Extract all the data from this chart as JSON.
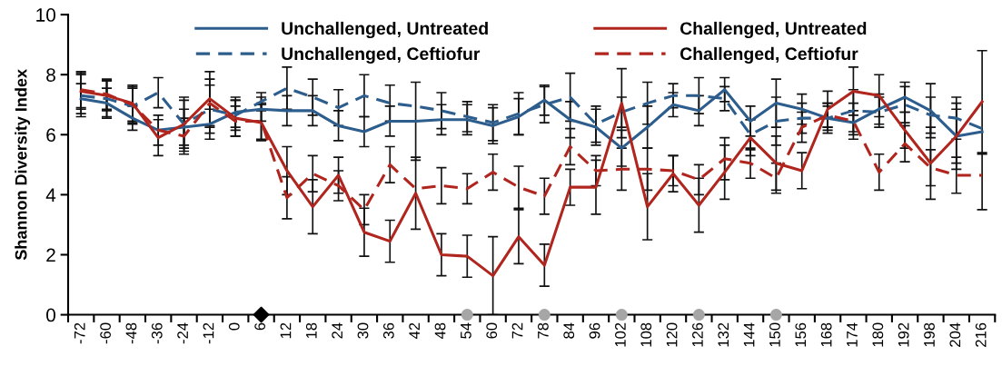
{
  "chart_data": {
    "type": "line",
    "ylabel": "Shannon Diversity Index",
    "categories": [
      "-72",
      "-60",
      "-48",
      "-36",
      "-24",
      "-12",
      "0",
      "6",
      "12",
      "18",
      "24",
      "30",
      "36",
      "42",
      "48",
      "54",
      "60",
      "72",
      "78",
      "84",
      "96",
      "102",
      "108",
      "120",
      "126",
      "132",
      "144",
      "150",
      "156",
      "168",
      "174",
      "180",
      "192",
      "198",
      "204",
      "216"
    ],
    "ylim": [
      0,
      10
    ],
    "yticks": [
      0,
      2,
      4,
      6,
      8,
      10
    ],
    "grid": false,
    "legend": "top",
    "marker": "none",
    "series": [
      {
        "name": "Unchallenged, Untreated",
        "color": "#2c5d8c",
        "line_style": "solid",
        "values": [
          7.2,
          7.05,
          6.55,
          6.15,
          6.25,
          6.35,
          6.75,
          6.85,
          6.8,
          6.8,
          6.3,
          6.1,
          6.45,
          6.45,
          6.5,
          6.5,
          6.3,
          6.6,
          7.15,
          6.5,
          6.25,
          5.55,
          6.25,
          7.0,
          6.8,
          7.5,
          6.45,
          7.05,
          6.85,
          6.55,
          6.4,
          6.85,
          7.25,
          6.8,
          5.95,
          6.1
        ],
        "errors": [
          0.5,
          0.5,
          0.4,
          0.5,
          0.6,
          0.5,
          0.5,
          0.4,
          0.5,
          0.5,
          0.5,
          0.5,
          0.5,
          1.3,
          0.5,
          0.5,
          0.6,
          0.6,
          0.5,
          0.6,
          0.6,
          0.6,
          0.7,
          0.4,
          0.5,
          0.4,
          0.5,
          0.8,
          0.5,
          0.4,
          0.4,
          0.5,
          0.5,
          0.9,
          0.9,
          null
        ]
      },
      {
        "name": "Unchallenged, Ceftiofur",
        "color": "#2c5d8c",
        "line_style": "dashed",
        "values": [
          7.3,
          7.2,
          6.95,
          7.4,
          6.35,
          6.85,
          6.65,
          7.1,
          7.55,
          7.25,
          6.9,
          7.3,
          7.05,
          6.95,
          6.8,
          6.6,
          6.4,
          6.7,
          7.0,
          7.25,
          6.35,
          6.75,
          7.05,
          7.3,
          7.3,
          7.2,
          6.0,
          6.45,
          6.55,
          6.55,
          6.8,
          6.75,
          7.0,
          6.65,
          6.55,
          6.2
        ],
        "errors": [
          0.7,
          0.6,
          0.6,
          0.5,
          0.8,
          0.8,
          0.5,
          0.3,
          0.7,
          0.6,
          0.6,
          0.7,
          0.6,
          null,
          0.6,
          0.5,
          0.6,
          0.7,
          0.6,
          0.8,
          0.6,
          0.5,
          0.7,
          0.4,
          0.6,
          0.4,
          0.5,
          0.8,
          0.5,
          0.5,
          0.7,
          0.5,
          0.6,
          0.6,
          0.7,
          null
        ]
      },
      {
        "name": "Challenged, Untreated",
        "color": "#b0251d",
        "line_style": "solid",
        "values": [
          7.45,
          7.3,
          7.05,
          5.9,
          6.35,
          7.2,
          6.55,
          6.4,
          4.8,
          3.6,
          4.65,
          2.75,
          2.45,
          4.05,
          2.0,
          1.95,
          1.3,
          2.6,
          1.65,
          4.25,
          4.25,
          7.05,
          3.6,
          4.7,
          3.65,
          4.75,
          5.9,
          5.05,
          4.8,
          6.85,
          7.45,
          7.3,
          6.15,
          5.05,
          5.95,
          7.1
        ],
        "errors": [
          0.6,
          0.5,
          0.6,
          0.6,
          0.9,
          0.9,
          0.6,
          0.6,
          0.8,
          0.9,
          0.6,
          0.8,
          0.7,
          1.2,
          0.7,
          0.7,
          1.3,
          0.9,
          0.7,
          0.6,
          0.9,
          1.15,
          1.1,
          0.6,
          0.9,
          0.9,
          0.6,
          0.9,
          0.6,
          0.6,
          0.8,
          0.7,
          0.6,
          1.2,
          1.1,
          1.7
        ]
      },
      {
        "name": "Challenged, Ceftiofur",
        "color": "#b0251d",
        "line_style": "dashed",
        "values": [
          7.5,
          7.35,
          7.0,
          6.15,
          5.95,
          7.05,
          6.45,
          6.45,
          3.9,
          4.7,
          4.3,
          3.5,
          5.0,
          4.2,
          4.3,
          4.2,
          4.75,
          4.25,
          3.95,
          5.6,
          4.8,
          4.85,
          4.85,
          4.8,
          4.5,
          5.2,
          5.05,
          4.55,
          6.25,
          6.65,
          6.45,
          4.75,
          5.7,
          4.9,
          4.65,
          4.65
        ],
        "errors": [
          0.6,
          0.5,
          0.6,
          null,
          0.6,
          0.8,
          0.5,
          0.6,
          0.7,
          0.6,
          0.5,
          0.5,
          0.6,
          null,
          0.6,
          0.5,
          0.6,
          0.7,
          0.6,
          0.6,
          0.5,
          0.7,
          0.7,
          0.5,
          0.5,
          0.7,
          0.5,
          0.5,
          0.5,
          0.4,
          0.6,
          0.6,
          0.6,
          0.6,
          0.6,
          [
            3.5,
            5.35
          ]
        ]
      },
      {
        "type": "scatter",
        "marker": "diamond",
        "color": "#000000",
        "x": [
          "6"
        ],
        "values": [
          0
        ]
      },
      {
        "type": "scatter",
        "marker": "circle",
        "color": "#a6a6a6",
        "x": [
          "54",
          "78",
          "102",
          "126",
          "150"
        ],
        "values": [
          0,
          0,
          0,
          0,
          0
        ]
      }
    ]
  }
}
